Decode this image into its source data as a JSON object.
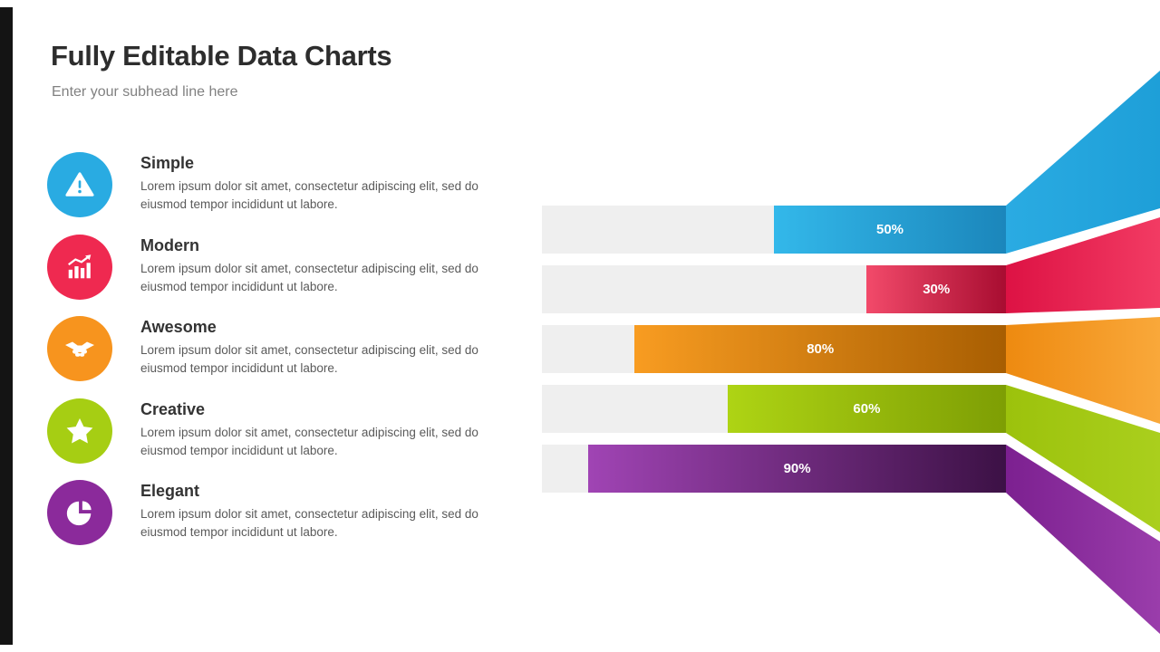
{
  "slide": {
    "title": "Fully Editable Data Charts",
    "subtitle": "Enter your subhead line here"
  },
  "features": [
    {
      "heading": "Simple",
      "body": "Lorem ipsum dolor sit amet, consectetur adipiscing elit, sed do eiusmod tempor incididunt ut labore.",
      "color": "#29abe2",
      "icon": "warning-icon"
    },
    {
      "heading": "Modern",
      "body": "Lorem ipsum dolor sit amet, consectetur adipiscing elit, sed do eiusmod tempor incididunt ut labore.",
      "color": "#ef2950",
      "icon": "growth-chart-icon"
    },
    {
      "heading": "Awesome",
      "body": "Lorem ipsum dolor sit amet, consectetur adipiscing elit, sed do eiusmod tempor incididunt ut labore.",
      "color": "#f7941e",
      "icon": "handshake-icon"
    },
    {
      "heading": "Creative",
      "body": "Lorem ipsum dolor sit amet, consectetur adipiscing elit, sed do eiusmod tempor incididunt ut labore.",
      "color": "#a6ce13",
      "icon": "star-icon"
    },
    {
      "heading": "Elegant",
      "body": "Lorem ipsum dolor sit amet, consectetur adipiscing elit, sed do eiusmod tempor incididunt ut labore.",
      "color": "#8b2a9b",
      "icon": "pie-chart-icon"
    }
  ],
  "chart_data": {
    "type": "bar",
    "orientation": "horizontal",
    "bars_anchored": "right",
    "categories": [
      "Simple",
      "Modern",
      "Awesome",
      "Creative",
      "Elegant"
    ],
    "values": [
      50,
      30,
      80,
      60,
      90
    ],
    "labels": [
      "50%",
      "30%",
      "80%",
      "60%",
      "90%"
    ],
    "value_range": [
      0,
      100
    ],
    "track_color": "#efefef",
    "colors": [
      "#29abe2",
      "#ed1c4d",
      "#f7941e",
      "#a6ce13",
      "#7b1fa2"
    ],
    "grid": false,
    "legend": "none"
  }
}
